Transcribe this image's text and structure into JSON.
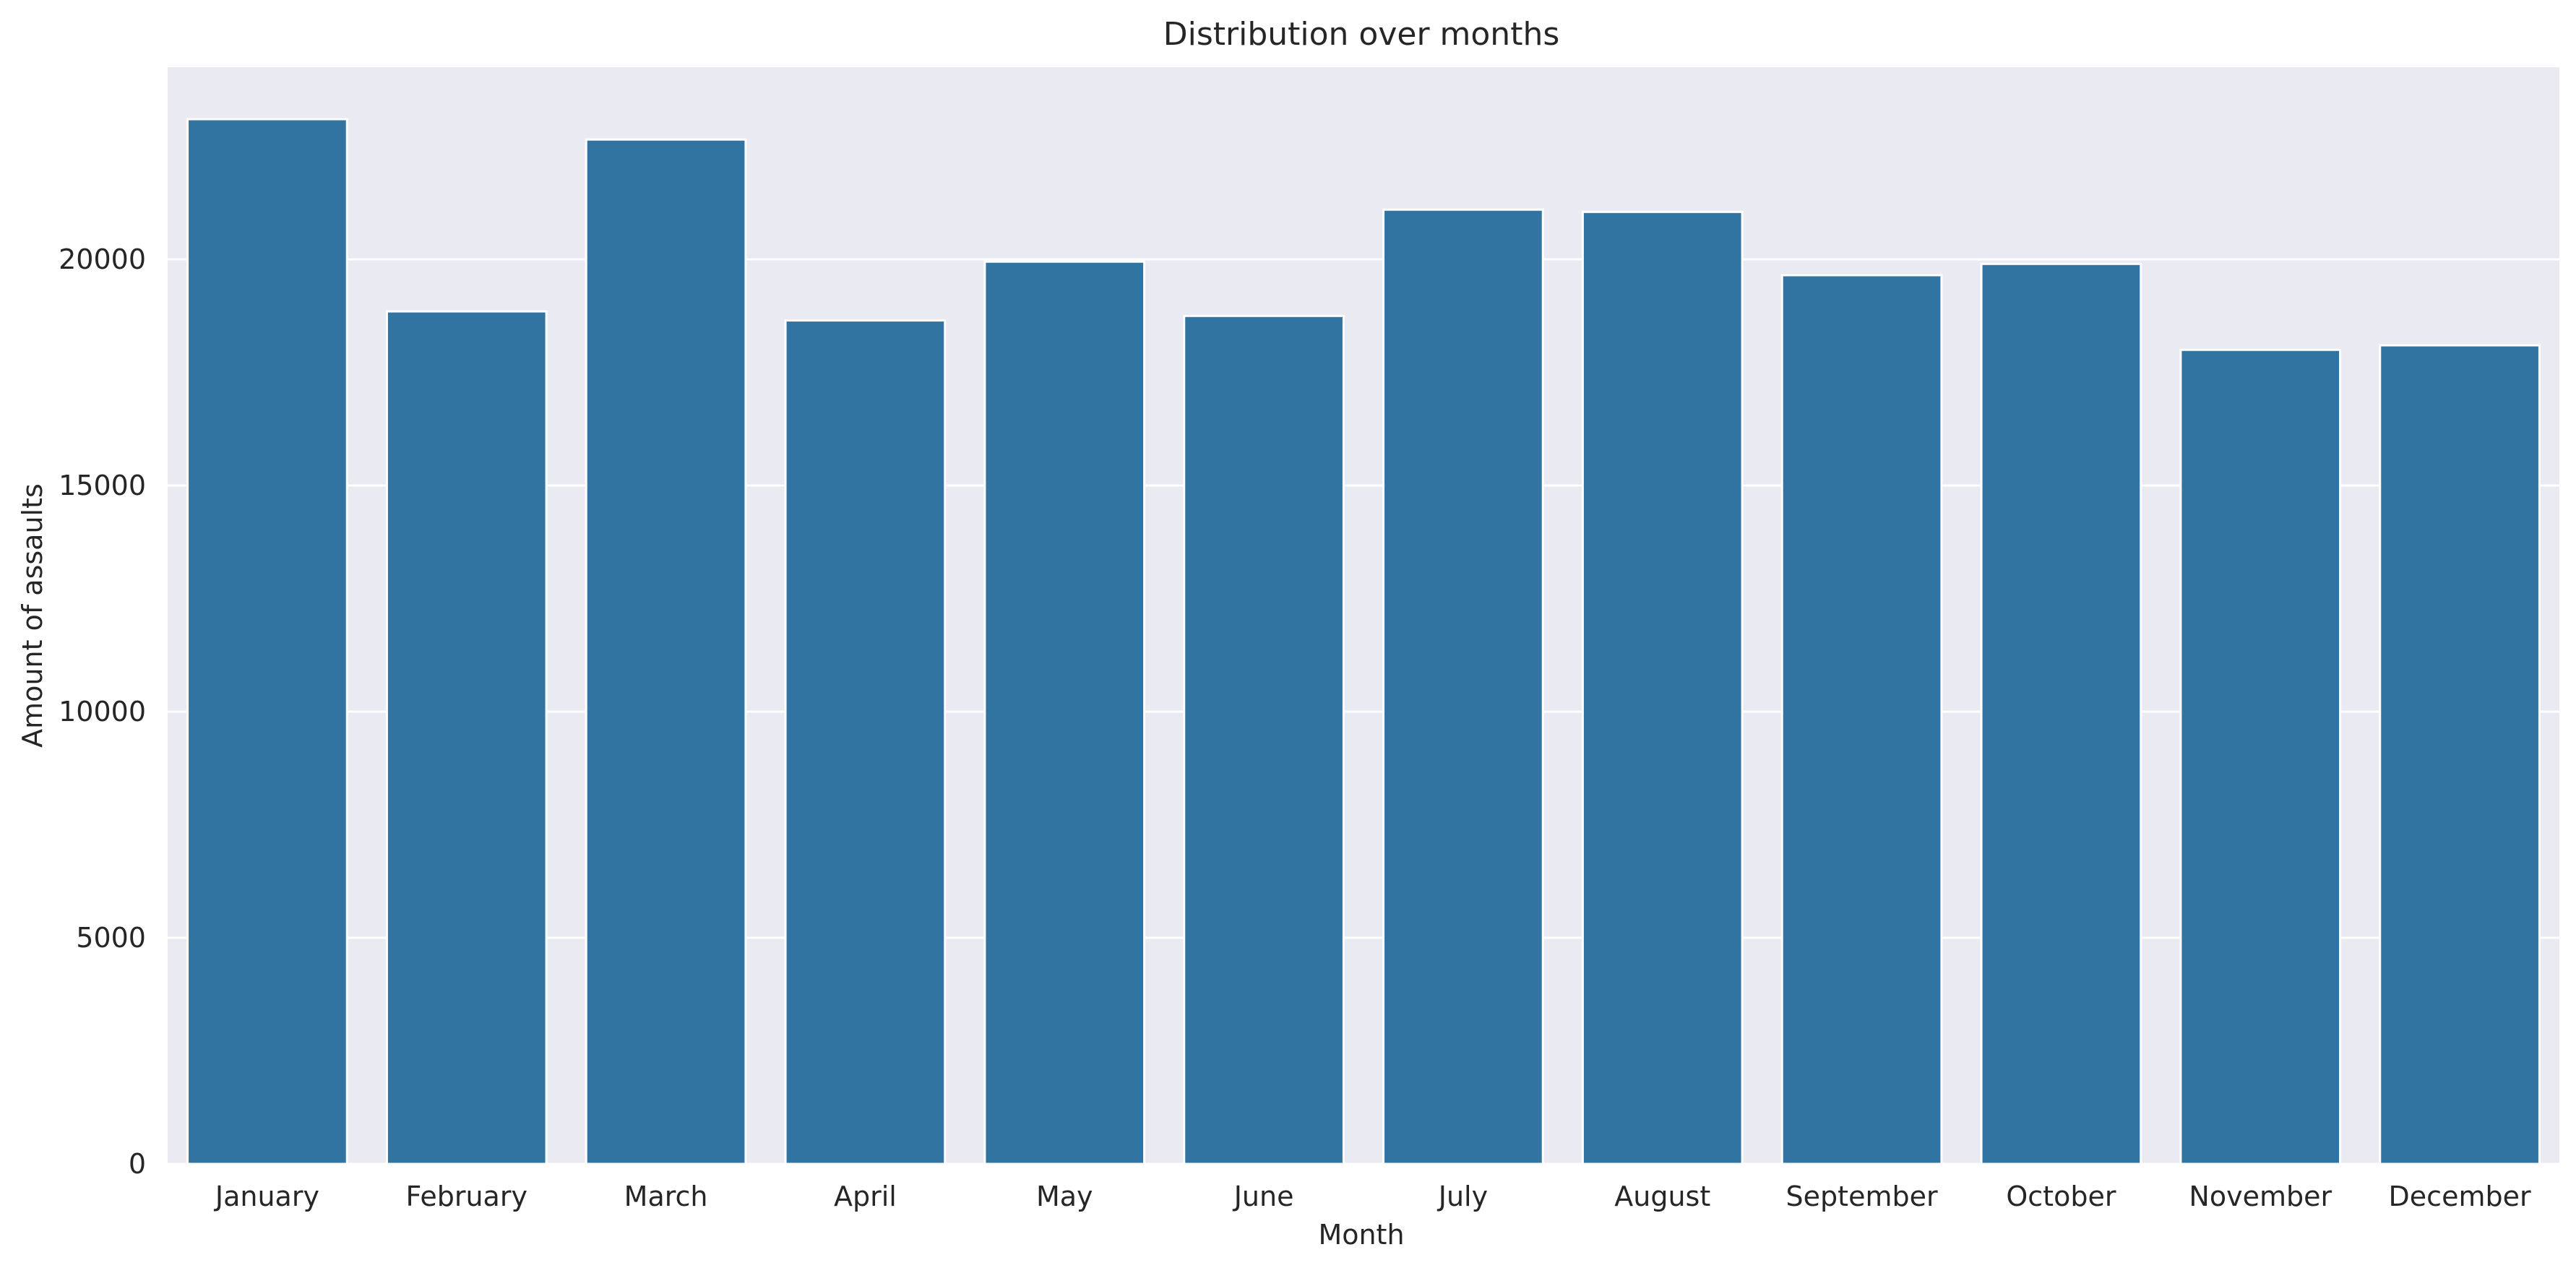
{
  "chart_data": {
    "type": "bar",
    "title": "Distribution over months",
    "xlabel": "Month",
    "ylabel": "Amount of assaults",
    "categories": [
      "January",
      "February",
      "March",
      "April",
      "May",
      "June",
      "July",
      "August",
      "September",
      "October",
      "November",
      "December"
    ],
    "values": [
      23100,
      18850,
      22650,
      18650,
      19950,
      18750,
      21100,
      21050,
      19650,
      19900,
      18000,
      18100
    ],
    "ylim": [
      0,
      24250
    ],
    "yticks": [
      0,
      5000,
      10000,
      15000,
      20000
    ],
    "grid": true,
    "legend": "none",
    "colors": {
      "bar": "#3274a1",
      "plot_background": "#eaeaf2",
      "grid": "#ffffff",
      "text": "#262626"
    }
  }
}
